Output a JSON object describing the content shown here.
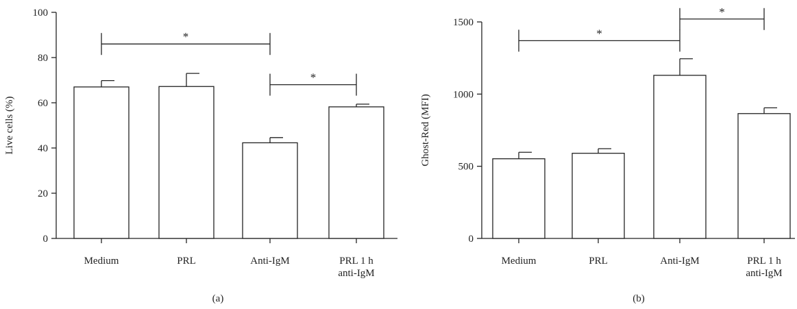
{
  "chart_data": [
    {
      "type": "bar",
      "panel_label": "(a)",
      "categories": [
        {
          "line1": "Medium",
          "line2": ""
        },
        {
          "line1": "PRL",
          "line2": ""
        },
        {
          "line1": "Anti-IgM",
          "line2": ""
        },
        {
          "line1": "PRL 1 h",
          "line2": "anti-IgM"
        }
      ],
      "values": [
        67,
        67.2,
        42.3,
        58.2
      ],
      "errors": [
        2.8,
        5.8,
        2.3,
        1.2
      ],
      "ylabel": "Live cells (%)",
      "ylim": [
        0,
        100
      ],
      "yticks": [
        0,
        20,
        40,
        60,
        80,
        100
      ],
      "significance": [
        {
          "from": 0,
          "to": 2,
          "label": "*",
          "y": 86
        },
        {
          "from": 2,
          "to": 3,
          "label": "*",
          "y": 68
        }
      ]
    },
    {
      "type": "bar",
      "panel_label": "(b)",
      "categories": [
        {
          "line1": "Medium",
          "line2": ""
        },
        {
          "line1": "PRL",
          "line2": ""
        },
        {
          "line1": "Anti-IgM",
          "line2": ""
        },
        {
          "line1": "PRL 1 h",
          "line2": "anti-IgM"
        }
      ],
      "values": [
        552,
        590,
        1130,
        865
      ],
      "errors": [
        45,
        32,
        115,
        40
      ],
      "ylabel": "Ghost-Red (MFI)",
      "ylim": [
        0,
        1500
      ],
      "yticks": [
        0,
        500,
        1000,
        1500
      ],
      "significance": [
        {
          "from": 0,
          "to": 2,
          "label": "*",
          "y": 1370
        },
        {
          "from": 2,
          "to": 3,
          "label": "*",
          "y": 1520
        }
      ]
    }
  ]
}
